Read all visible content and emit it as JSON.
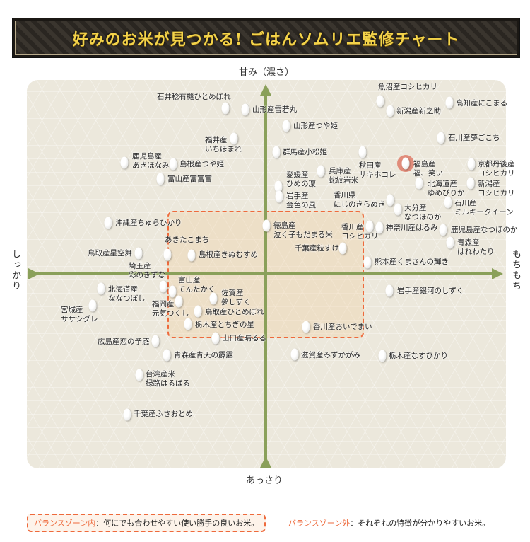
{
  "title": "好みのお米が見つかる! ごはんソムリエ監修チャート",
  "axes": {
    "top": "甘み（濃さ）",
    "bottom": "あっさり",
    "left": "しっかり",
    "right": "もちもち"
  },
  "colors": {
    "axis": "#8aa05a",
    "zone_border": "#ee6a3c",
    "highlight": "#de6e5a",
    "background": "#ece8dc"
  },
  "legend": {
    "inside_label": "バランスゾーン内",
    "inside_text": "：何にでも合わせやすい使い勝手の良いお米。",
    "outside_label": "バランスゾーン外",
    "outside_text": "：それぞれの特徴が分かりやすいお米。"
  },
  "chart_data": {
    "type": "scatter",
    "highlighted": "福島産\n福、笑い",
    "items": [
      "石井稔有機ひとめぼれ",
      "山形産雪若丸",
      "山形産つや姫",
      "福井産\nいちほまれ",
      "鹿児島産\nあきほなみ",
      "島根産つや姫",
      "富山産富富富",
      "群馬産小松姫",
      "愛媛産\nひめの凜",
      "岩手産\n金色の風",
      "兵庫産\n蛇紋岩米",
      "秋田産\nサキホコレ",
      "香川県\nにじのきらめき",
      "大分産\nなつほのか",
      "福島産\n福、笑い",
      "北海道産\nゆめぴりか",
      "京都丹後産\nコシヒカリ",
      "新潟産\nコシヒカリ",
      "石川産\nミルキークイーン",
      "魚沼産コシヒカリ",
      "新潟産新之助",
      "高知産にこまる",
      "石川産夢ごこち",
      "沖縄産ちゅらひかり",
      "徳島産\n泣く子もだまる米",
      "香川産\nコシヒカリ",
      "神奈川産はるみ",
      "鹿児島産なつほのか",
      "青森産\nはれわたり",
      "千葉産粒すけ",
      "熊本産くまさんの輝き",
      "あきたこまち",
      "鳥取産星空舞",
      "島根産きぬむすめ",
      "埼玉産\n彩のきずな",
      "富山産\nてんたかく",
      "北海道産\nななつぼし",
      "宮城産\nササシグレ",
      "福岡産\n元気つくし",
      "佐賀産\n夢しずく",
      "鳥取産ひとめぼれ",
      "栃木産とちぎの星",
      "山口産晴るる",
      "広島産恋の予感",
      "香川産おいでまい",
      "岩手産銀河のしずく",
      "滋賀産みずかがみ",
      "栃木産なすひかり",
      "青森産青天の霹靂",
      "台湾産米\n緑路はるばる",
      "千葉産ふさおとめ"
    ]
  }
}
